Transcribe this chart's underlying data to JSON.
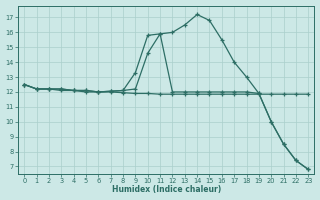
{
  "xlabel": "Humidex (Indice chaleur)",
  "background_color": "#cce8e6",
  "grid_color": "#aacfcc",
  "line_color": "#2d6e65",
  "xlim": [
    -0.5,
    23.5
  ],
  "ylim": [
    6.5,
    17.8
  ],
  "yticks": [
    7,
    8,
    9,
    10,
    11,
    12,
    13,
    14,
    15,
    16,
    17
  ],
  "xticks": [
    0,
    1,
    2,
    3,
    4,
    5,
    6,
    7,
    8,
    9,
    10,
    11,
    12,
    13,
    14,
    15,
    16,
    17,
    18,
    19,
    20,
    21,
    22,
    23
  ],
  "line1_x": [
    0,
    1,
    2,
    3,
    4,
    5,
    6,
    7,
    8,
    9,
    10,
    11,
    12,
    13,
    14,
    15,
    16,
    17,
    18,
    19,
    20,
    21,
    22,
    23
  ],
  "line1_y": [
    12.5,
    12.2,
    12.2,
    12.2,
    12.1,
    12.1,
    12.0,
    12.05,
    12.1,
    13.3,
    15.8,
    15.9,
    16.0,
    16.5,
    17.2,
    16.8,
    15.5,
    14.0,
    13.0,
    11.9,
    10.0,
    8.5,
    7.4,
    6.8
  ],
  "line2_x": [
    0,
    1,
    2,
    3,
    4,
    5,
    6,
    7,
    8,
    9,
    10,
    11,
    12,
    13,
    14,
    15,
    16,
    17,
    18,
    19,
    20,
    21,
    22,
    23
  ],
  "line2_y": [
    12.5,
    12.2,
    12.2,
    12.2,
    12.1,
    12.1,
    12.0,
    12.05,
    12.1,
    12.2,
    14.6,
    15.9,
    12.0,
    12.0,
    12.0,
    12.0,
    12.0,
    12.0,
    12.0,
    11.9,
    10.0,
    8.5,
    7.4,
    6.8
  ],
  "line3_x": [
    0,
    1,
    2,
    3,
    4,
    5,
    6,
    7,
    8,
    9,
    10,
    11,
    12,
    13,
    14,
    15,
    16,
    17,
    18,
    19,
    20,
    21,
    22,
    23
  ],
  "line3_y": [
    12.5,
    12.2,
    12.2,
    12.1,
    12.1,
    12.0,
    12.0,
    12.0,
    11.95,
    11.9,
    11.9,
    11.85,
    11.85,
    11.85,
    11.85,
    11.85,
    11.85,
    11.85,
    11.85,
    11.85,
    11.85,
    11.85,
    11.85,
    11.85
  ]
}
